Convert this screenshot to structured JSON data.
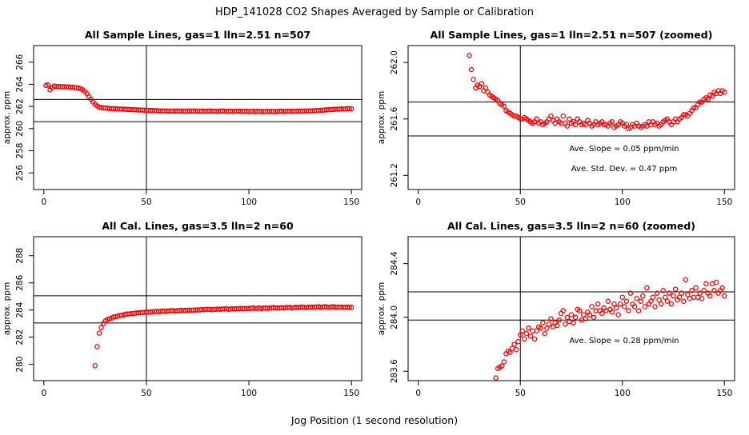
{
  "page": {
    "title": "HDP_141028  CO2 Shapes Averaged by Sample or Calibration",
    "xlabel": "Jog Position (1 second resolution)"
  },
  "chart_data": [
    {
      "type": "scatter",
      "title": "All Sample Lines, gas=1 lln=2.51 n=507",
      "ylabel": "approx. ppm",
      "xlim": [
        -5,
        155
      ],
      "ylim": [
        254.5,
        267.5
      ],
      "xticks": [
        "0",
        "50",
        "100",
        "150"
      ],
      "yticks": [
        "256",
        "258",
        "260",
        "262",
        "264",
        "266"
      ],
      "vline": 50,
      "hlines": [
        262.63,
        260.63
      ],
      "annotations": [],
      "color": "#ff0000",
      "x": [
        1,
        2,
        3,
        4,
        5,
        6,
        7,
        8,
        9,
        10,
        11,
        12,
        13,
        14,
        15,
        16,
        17,
        18,
        19,
        20,
        21,
        22,
        23,
        24,
        25,
        26,
        27,
        28,
        29,
        30,
        31,
        32,
        33,
        34,
        35,
        36,
        37,
        38,
        39,
        40,
        41,
        42,
        43,
        44,
        45,
        46,
        47,
        48,
        49,
        50,
        51,
        52,
        53,
        54,
        55,
        56,
        57,
        58,
        59,
        60,
        61,
        62,
        63,
        64,
        65,
        66,
        67,
        68,
        69,
        70,
        71,
        72,
        73,
        74,
        75,
        76,
        77,
        78,
        79,
        80,
        81,
        82,
        83,
        84,
        85,
        86,
        87,
        88,
        89,
        90,
        91,
        92,
        93,
        94,
        95,
        96,
        97,
        98,
        99,
        100,
        101,
        102,
        103,
        104,
        105,
        106,
        107,
        108,
        109,
        110,
        111,
        112,
        113,
        114,
        115,
        116,
        117,
        118,
        119,
        120,
        121,
        122,
        123,
        124,
        125,
        126,
        127,
        128,
        129,
        130,
        131,
        132,
        133,
        134,
        135,
        136,
        137,
        138,
        139,
        140,
        141,
        142,
        143,
        144,
        145,
        146,
        147,
        148,
        149,
        150
      ],
      "y": [
        263.9,
        263.95,
        263.5,
        263.7,
        263.85,
        263.8,
        263.8,
        263.8,
        263.75,
        263.8,
        263.75,
        263.78,
        263.72,
        263.74,
        263.7,
        263.7,
        263.66,
        263.6,
        263.5,
        263.35,
        263.15,
        262.9,
        262.65,
        262.4,
        262.2,
        262.05,
        261.95,
        261.9,
        261.88,
        261.86,
        261.84,
        261.82,
        261.8,
        261.8,
        261.79,
        261.78,
        261.77,
        261.76,
        261.76,
        261.74,
        261.74,
        261.72,
        261.72,
        261.7,
        261.7,
        261.69,
        261.68,
        261.68,
        261.66,
        261.66,
        261.64,
        261.64,
        261.63,
        261.62,
        261.62,
        261.6,
        261.6,
        261.6,
        261.6,
        261.58,
        261.58,
        261.58,
        261.6,
        261.58,
        261.6,
        261.58,
        261.58,
        261.58,
        261.56,
        261.58,
        261.6,
        261.58,
        261.6,
        261.58,
        261.58,
        261.56,
        261.58,
        261.58,
        261.56,
        261.58,
        261.6,
        261.58,
        261.58,
        261.56,
        261.56,
        261.58,
        261.6,
        261.58,
        261.56,
        261.56,
        261.58,
        261.56,
        261.56,
        261.58,
        261.58,
        261.56,
        261.56,
        261.56,
        261.56,
        261.54,
        261.56,
        261.56,
        261.54,
        261.56,
        261.56,
        261.54,
        261.54,
        261.54,
        261.56,
        261.54,
        261.56,
        261.54,
        261.54,
        261.56,
        261.56,
        261.58,
        261.54,
        261.56,
        261.58,
        261.56,
        261.58,
        261.56,
        261.56,
        261.58,
        261.58,
        261.56,
        261.6,
        261.58,
        261.6,
        261.6,
        261.6,
        261.62,
        261.62,
        261.64,
        261.66,
        261.66,
        261.68,
        261.7,
        261.72,
        261.72,
        261.74,
        261.74,
        261.76,
        261.76,
        261.78,
        261.78,
        261.78,
        261.8,
        261.8,
        261.8
      ]
    },
    {
      "type": "scatter",
      "title": "All Sample Lines, gas=1 lln=2.51 n=507 (zoomed)",
      "ylabel": "approx. ppm",
      "xlim": [
        -5,
        155
      ],
      "ylim": [
        261.1,
        262.12
      ],
      "xticks": [
        "0",
        "50",
        "100",
        "150"
      ],
      "yticks": [
        "261.2",
        "261.6",
        "262.0"
      ],
      "vline": 50,
      "hlines": [
        261.72,
        261.48
      ],
      "annotations": [
        "Ave. Slope =  0.05  ppm/min",
        "Ave. Std. Dev. =  0.47  ppm"
      ],
      "color": "#ff0000",
      "x": [
        25,
        26,
        27,
        28,
        29,
        30,
        31,
        32,
        33,
        34,
        35,
        36,
        37,
        38,
        39,
        40,
        41,
        42,
        43,
        44,
        45,
        46,
        47,
        48,
        49,
        50,
        51,
        52,
        53,
        54,
        55,
        56,
        57,
        58,
        59,
        60,
        61,
        62,
        63,
        64,
        65,
        66,
        67,
        68,
        69,
        70,
        71,
        72,
        73,
        74,
        75,
        76,
        77,
        78,
        79,
        80,
        81,
        82,
        83,
        84,
        85,
        86,
        87,
        88,
        89,
        90,
        91,
        92,
        93,
        94,
        95,
        96,
        97,
        98,
        99,
        100,
        101,
        102,
        103,
        104,
        105,
        106,
        107,
        108,
        109,
        110,
        111,
        112,
        113,
        114,
        115,
        116,
        117,
        118,
        119,
        120,
        121,
        122,
        123,
        124,
        125,
        126,
        127,
        128,
        129,
        130,
        131,
        132,
        133,
        134,
        135,
        136,
        137,
        138,
        139,
        140,
        141,
        142,
        143,
        144,
        145,
        146,
        147,
        148,
        149,
        150
      ],
      "y": [
        262.05,
        261.95,
        261.88,
        261.82,
        261.84,
        261.83,
        261.85,
        261.8,
        261.82,
        261.79,
        261.77,
        261.76,
        261.75,
        261.74,
        261.73,
        261.71,
        261.7,
        261.69,
        261.66,
        261.65,
        261.64,
        261.63,
        261.62,
        261.62,
        261.61,
        261.6,
        261.6,
        261.61,
        261.6,
        261.59,
        261.58,
        261.57,
        261.58,
        261.6,
        261.57,
        261.58,
        261.56,
        261.57,
        261.58,
        261.6,
        261.62,
        261.59,
        261.57,
        261.6,
        261.58,
        261.57,
        261.62,
        261.57,
        261.55,
        261.6,
        261.57,
        261.58,
        261.56,
        261.6,
        261.58,
        261.56,
        261.57,
        261.56,
        261.59,
        261.57,
        261.55,
        261.56,
        261.58,
        261.56,
        261.57,
        261.58,
        261.56,
        261.56,
        261.55,
        261.57,
        261.58,
        261.54,
        261.55,
        261.56,
        261.58,
        261.57,
        261.55,
        261.56,
        261.53,
        261.54,
        261.56,
        261.55,
        261.57,
        261.55,
        261.54,
        261.55,
        261.56,
        261.55,
        261.58,
        261.56,
        261.58,
        261.56,
        261.57,
        261.55,
        261.56,
        261.58,
        261.59,
        261.6,
        261.58,
        261.56,
        261.58,
        261.6,
        261.58,
        261.6,
        261.61,
        261.63,
        261.63,
        261.62,
        261.64,
        261.66,
        261.68,
        261.68,
        261.7,
        261.72,
        261.72,
        261.74,
        261.75,
        261.74,
        261.77,
        261.76,
        261.79,
        261.78,
        261.8,
        261.78,
        261.8,
        261.79
      ]
    },
    {
      "type": "scatter",
      "title": "All Cal. Lines, gas=3.5 lln=2 n=60",
      "ylabel": "approx. ppm",
      "xlim": [
        -5,
        155
      ],
      "ylim": [
        278.8,
        289.4
      ],
      "xticks": [
        "0",
        "50",
        "100",
        "150"
      ],
      "yticks": [
        "280",
        "282",
        "284",
        "286",
        "288"
      ],
      "vline": 50,
      "hlines": [
        285.05,
        283.05
      ],
      "annotations": [],
      "color": "#ff0000",
      "x": [
        25,
        26,
        27,
        28,
        29,
        30,
        31,
        32,
        33,
        34,
        35,
        36,
        37,
        38,
        39,
        40,
        41,
        42,
        43,
        44,
        45,
        46,
        47,
        48,
        49,
        50,
        51,
        52,
        53,
        54,
        55,
        56,
        57,
        58,
        59,
        60,
        61,
        62,
        63,
        64,
        65,
        66,
        67,
        68,
        69,
        70,
        71,
        72,
        73,
        74,
        75,
        76,
        77,
        78,
        79,
        80,
        81,
        82,
        83,
        84,
        85,
        86,
        87,
        88,
        89,
        90,
        91,
        92,
        93,
        94,
        95,
        96,
        97,
        98,
        99,
        100,
        101,
        102,
        103,
        104,
        105,
        106,
        107,
        108,
        109,
        110,
        111,
        112,
        113,
        114,
        115,
        116,
        117,
        118,
        119,
        120,
        121,
        122,
        123,
        124,
        125,
        126,
        127,
        128,
        129,
        130,
        131,
        132,
        133,
        134,
        135,
        136,
        137,
        138,
        139,
        140,
        141,
        142,
        143,
        144,
        145,
        146,
        147,
        148,
        149,
        150
      ],
      "y": [
        279.9,
        281.3,
        282.3,
        282.7,
        283.0,
        283.2,
        283.3,
        283.35,
        283.4,
        283.5,
        283.5,
        283.55,
        283.6,
        283.6,
        283.65,
        283.7,
        283.7,
        283.72,
        283.75,
        283.75,
        283.78,
        283.8,
        283.8,
        283.82,
        283.82,
        283.85,
        283.85,
        283.85,
        283.88,
        283.88,
        283.9,
        283.88,
        283.9,
        283.92,
        283.9,
        283.92,
        283.92,
        283.95,
        283.95,
        283.92,
        283.95,
        283.95,
        283.98,
        283.95,
        283.98,
        283.98,
        284.0,
        283.98,
        284.0,
        284.0,
        284.02,
        284.0,
        284.05,
        284.02,
        284.05,
        284.05,
        284.05,
        284.02,
        284.05,
        284.05,
        284.08,
        284.05,
        284.08,
        284.08,
        284.1,
        284.05,
        284.08,
        284.1,
        284.08,
        284.1,
        284.1,
        284.12,
        284.1,
        284.12,
        284.1,
        284.12,
        284.12,
        284.15,
        284.12,
        284.12,
        284.15,
        284.1,
        284.15,
        284.15,
        284.12,
        284.15,
        284.15,
        284.18,
        284.15,
        284.15,
        284.15,
        284.18,
        284.15,
        284.18,
        284.18,
        284.2,
        284.15,
        284.18,
        284.2,
        284.18,
        284.2,
        284.22,
        284.2,
        284.18,
        284.2,
        284.22,
        284.2,
        284.22,
        284.22,
        284.25,
        284.2,
        284.22,
        284.25,
        284.22,
        284.2,
        284.22,
        284.25,
        284.22,
        284.2,
        284.22,
        284.22,
        284.2,
        284.2,
        284.22,
        284.2,
        284.2
      ]
    },
    {
      "type": "scatter",
      "title": "All Cal. Lines, gas=3.5 lln=2 n=60 (zoomed)",
      "ylabel": "approx. ppm",
      "xlim": [
        -5,
        155
      ],
      "ylim": [
        283.53,
        284.6
      ],
      "xticks": [
        "0",
        "50",
        "100",
        "150"
      ],
      "yticks": [
        "283.6",
        "284.0",
        "284.4"
      ],
      "vline": 50,
      "hlines": [
        284.19,
        283.98
      ],
      "annotations": [
        "Ave. Slope =  0.28  ppm/min"
      ],
      "color": "#ff0000",
      "x": [
        38,
        39,
        40,
        41,
        42,
        43,
        44,
        45,
        46,
        47,
        48,
        49,
        50,
        51,
        52,
        53,
        54,
        55,
        56,
        57,
        58,
        59,
        60,
        61,
        62,
        63,
        64,
        65,
        66,
        67,
        68,
        69,
        70,
        71,
        72,
        73,
        74,
        75,
        76,
        77,
        78,
        79,
        80,
        81,
        82,
        83,
        84,
        85,
        86,
        87,
        88,
        89,
        90,
        91,
        92,
        93,
        94,
        95,
        96,
        97,
        98,
        99,
        100,
        101,
        102,
        103,
        104,
        105,
        106,
        107,
        108,
        109,
        110,
        111,
        112,
        113,
        114,
        115,
        116,
        117,
        118,
        119,
        120,
        121,
        122,
        123,
        124,
        125,
        126,
        127,
        128,
        129,
        130,
        131,
        132,
        133,
        134,
        135,
        136,
        137,
        138,
        139,
        140,
        141,
        142,
        143,
        144,
        145,
        146,
        147,
        148,
        149,
        150
      ],
      "y": [
        283.55,
        283.62,
        283.63,
        283.64,
        283.67,
        283.73,
        283.75,
        283.74,
        283.77,
        283.8,
        283.76,
        283.82,
        283.87,
        283.9,
        283.84,
        283.88,
        283.92,
        283.86,
        283.9,
        283.84,
        283.9,
        283.93,
        283.92,
        283.96,
        283.88,
        283.92,
        283.95,
        283.99,
        283.93,
        283.96,
        283.94,
        283.98,
        284.03,
        284.05,
        283.95,
        284.0,
        283.97,
        284.02,
        283.96,
        284.0,
        284.06,
        284.05,
        283.98,
        284.02,
        283.99,
        284.04,
        284.02,
        284.08,
        284.0,
        284.05,
        284.1,
        284.05,
        284.03,
        284.07,
        284.05,
        284.12,
        284.06,
        284.04,
        284.1,
        284.07,
        284.02,
        284.1,
        284.15,
        284.08,
        284.12,
        284.05,
        284.18,
        284.1,
        284.08,
        284.14,
        284.05,
        284.12,
        284.16,
        284.08,
        284.22,
        284.1,
        284.12,
        284.15,
        284.08,
        284.18,
        284.13,
        284.1,
        284.2,
        284.15,
        284.12,
        284.18,
        284.1,
        284.16,
        284.21,
        284.13,
        284.15,
        284.18,
        284.12,
        284.28,
        284.17,
        284.14,
        284.2,
        284.15,
        284.22,
        284.15,
        284.18,
        284.14,
        284.2,
        284.25,
        284.18,
        284.16,
        284.25,
        284.2,
        284.26,
        284.18,
        284.2,
        284.22,
        284.16
      ]
    }
  ]
}
